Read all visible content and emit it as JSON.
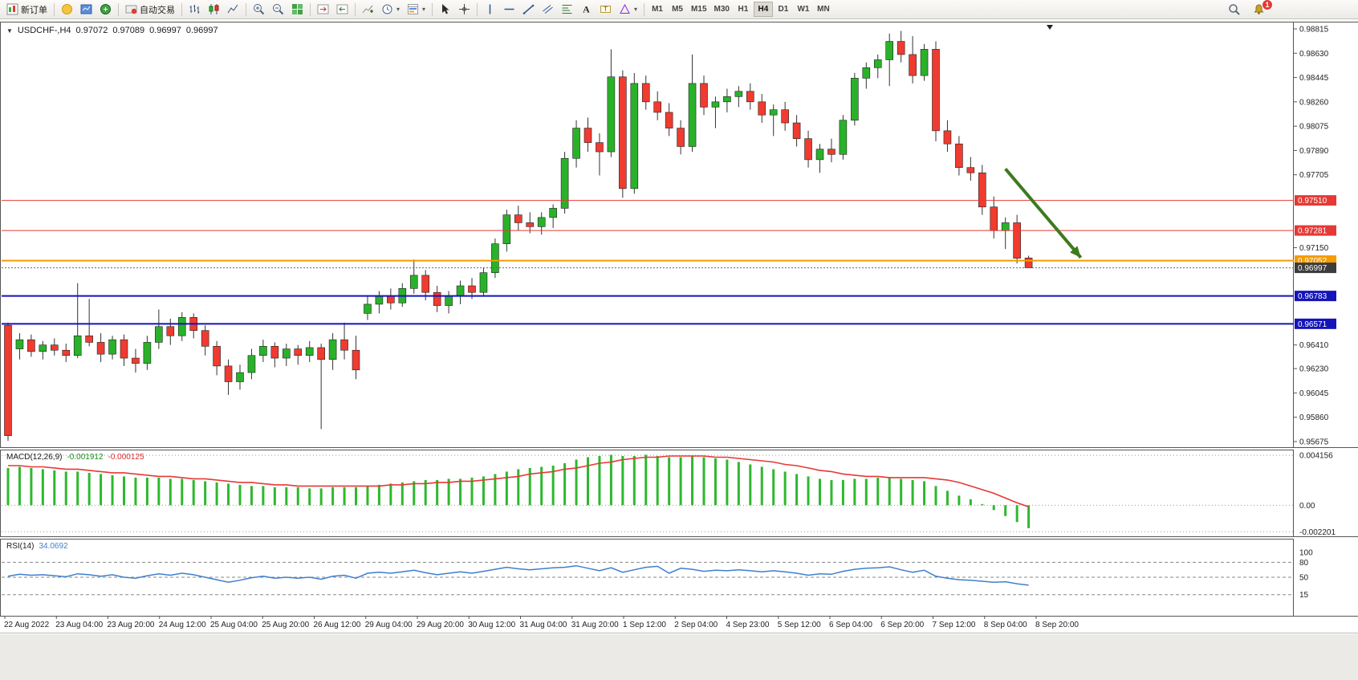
{
  "toolbar": {
    "groups": [
      [
        {
          "name": "new-order",
          "label": "新订单"
        }
      ],
      [
        {
          "name": "mql5"
        },
        {
          "name": "terminal"
        },
        {
          "name": "market-watch"
        }
      ],
      [
        {
          "name": "autotrading",
          "label": "自动交易"
        }
      ],
      [
        {
          "name": "bar-chart"
        },
        {
          "name": "candlestick-chart"
        },
        {
          "name": "line-chart"
        }
      ],
      [
        {
          "name": "zoom-in"
        },
        {
          "name": "zoom-out"
        },
        {
          "name": "tile-windows"
        }
      ],
      [
        {
          "name": "chart-shift"
        },
        {
          "name": "auto-scroll"
        }
      ],
      [
        {
          "name": "indicators-add"
        },
        {
          "name": "periods",
          "dropdown": true
        },
        {
          "name": "templates",
          "dropdown": true
        }
      ],
      [
        {
          "name": "cursor"
        },
        {
          "name": "crosshair"
        }
      ],
      [
        {
          "name": "vertical-line"
        },
        {
          "name": "horizontal-line"
        },
        {
          "name": "trendline"
        },
        {
          "name": "equidistant-channel"
        },
        {
          "name": "fibonacci"
        },
        {
          "name": "text"
        },
        {
          "name": "text-label"
        },
        {
          "name": "shapes",
          "dropdown": true
        }
      ]
    ],
    "timeframes": {
      "items": [
        "M1",
        "M5",
        "M15",
        "M30",
        "H1",
        "H4",
        "D1",
        "W1",
        "MN"
      ],
      "active": "H4"
    },
    "notification_count": "1"
  },
  "chart": {
    "title_symbol": "USDCHF-,H4",
    "open": "0.97072",
    "high": "0.97089",
    "low": "0.96997",
    "close": "0.96997",
    "y_axis_ticks": [
      "0.98815",
      "0.98630",
      "0.98445",
      "0.98260",
      "0.98075",
      "0.97890",
      "0.97705",
      "0.97520",
      "0.97335",
      "0.97150",
      "0.96965",
      "0.96780",
      "0.96595",
      "0.96410",
      "0.96230",
      "0.96045",
      "0.95860",
      "0.95675"
    ],
    "hlines": [
      {
        "price": 0.9751,
        "label": "0.97510",
        "color": "#e53935",
        "width": 1,
        "label_bg": "#e53935"
      },
      {
        "price": 0.97281,
        "label": "0.97281",
        "color": "#e53935",
        "width": 1,
        "label_bg": "#e53935"
      },
      {
        "price": 0.97052,
        "label": "0.97052",
        "color": "#f59b00",
        "width": 2,
        "label_bg": "#f59b00"
      },
      {
        "price": 0.96783,
        "label": "0.96783",
        "color": "#1414b8",
        "width": 2,
        "label_bg": "#1414b8"
      },
      {
        "price": 0.96571,
        "label": "0.96571",
        "color": "#1414b8",
        "width": 2,
        "label_bg": "#1414b8"
      }
    ],
    "current_price": {
      "value": 0.96997,
      "label": "0.96997",
      "label_bg": "#3c3c3c"
    },
    "arrow": {
      "from_index": 86,
      "from_price": 0.9775,
      "to_index": 92.5,
      "to_price": 0.97075,
      "color": "#3e7a1e"
    },
    "x_labels": [
      "22 Aug 2022",
      "23 Aug 04:00",
      "23 Aug 20:00",
      "24 Aug 12:00",
      "25 Aug 04:00",
      "25 Aug 20:00",
      "26 Aug 12:00",
      "29 Aug 04:00",
      "29 Aug 20:00",
      "30 Aug 12:00",
      "31 Aug 04:00",
      "31 Aug 20:00",
      "1 Sep 12:00",
      "2 Sep 04:00",
      "4 Sep 23:00",
      "5 Sep 12:00",
      "6 Sep 04:00",
      "6 Sep 20:00",
      "7 Sep 12:00",
      "8 Sep 04:00",
      "8 Sep 20:00"
    ]
  },
  "indicators": {
    "macd": {
      "name": "MACD(12,26,9)",
      "main_value": "-0.001912",
      "signal_value": "-0.000125"
    },
    "rsi": {
      "name": "RSI(14)",
      "value": "34.0692"
    }
  },
  "chart_data": [
    {
      "type": "candlestick",
      "symbol": "USDCHF-",
      "timeframe": "H4",
      "title": "USDCHF-,H4",
      "ohlc_current": {
        "open": 0.97072,
        "high": 0.97089,
        "low": 0.96997,
        "close": 0.96997
      },
      "y_range": [
        0.95675,
        0.98815
      ],
      "colors": {
        "bull": "#29b229",
        "bear": "#f03b30",
        "wick": "#333333"
      },
      "candles": [
        [
          0.9656,
          0.9658,
          0.9568,
          0.9572
        ],
        [
          0.9638,
          0.965,
          0.963,
          0.9645
        ],
        [
          0.9645,
          0.9649,
          0.9632,
          0.9636
        ],
        [
          0.9636,
          0.9644,
          0.963,
          0.9641
        ],
        [
          0.9641,
          0.9646,
          0.9633,
          0.9637
        ],
        [
          0.9637,
          0.9642,
          0.9628,
          0.9633
        ],
        [
          0.9633,
          0.9688,
          0.9631,
          0.9648
        ],
        [
          0.9648,
          0.9676,
          0.964,
          0.9643
        ],
        [
          0.9643,
          0.965,
          0.9628,
          0.9634
        ],
        [
          0.9634,
          0.9648,
          0.963,
          0.9645
        ],
        [
          0.9645,
          0.9649,
          0.9625,
          0.9631
        ],
        [
          0.9631,
          0.9638,
          0.962,
          0.9627
        ],
        [
          0.9627,
          0.9648,
          0.9622,
          0.9643
        ],
        [
          0.9643,
          0.9668,
          0.9638,
          0.9655
        ],
        [
          0.9655,
          0.9661,
          0.9641,
          0.9648
        ],
        [
          0.9648,
          0.9666,
          0.9644,
          0.9662
        ],
        [
          0.9662,
          0.9665,
          0.9646,
          0.9652
        ],
        [
          0.9652,
          0.9656,
          0.9633,
          0.964
        ],
        [
          0.964,
          0.9644,
          0.9618,
          0.9625
        ],
        [
          0.9625,
          0.963,
          0.9603,
          0.9613
        ],
        [
          0.9613,
          0.9626,
          0.9607,
          0.962
        ],
        [
          0.962,
          0.9638,
          0.9615,
          0.9633
        ],
        [
          0.9633,
          0.9645,
          0.9628,
          0.964
        ],
        [
          0.964,
          0.9643,
          0.9624,
          0.9631
        ],
        [
          0.9631,
          0.9642,
          0.9625,
          0.9638
        ],
        [
          0.9638,
          0.9641,
          0.9626,
          0.9633
        ],
        [
          0.9633,
          0.9644,
          0.9628,
          0.9639
        ],
        [
          0.9639,
          0.9642,
          0.9577,
          0.963
        ],
        [
          0.963,
          0.965,
          0.9622,
          0.9645
        ],
        [
          0.9645,
          0.9658,
          0.963,
          0.9637
        ],
        [
          0.9637,
          0.9648,
          0.9615,
          0.9622
        ],
        [
          0.9665,
          0.9678,
          0.966,
          0.9672
        ],
        [
          0.9672,
          0.9682,
          0.9665,
          0.9678
        ],
        [
          0.9678,
          0.9684,
          0.9668,
          0.9673
        ],
        [
          0.9673,
          0.9688,
          0.967,
          0.9684
        ],
        [
          0.9684,
          0.9706,
          0.968,
          0.9694
        ],
        [
          0.9694,
          0.9698,
          0.9675,
          0.9681
        ],
        [
          0.9681,
          0.9686,
          0.9666,
          0.9671
        ],
        [
          0.9671,
          0.9682,
          0.9665,
          0.9678
        ],
        [
          0.9678,
          0.969,
          0.9672,
          0.9686
        ],
        [
          0.9686,
          0.9692,
          0.9676,
          0.9681
        ],
        [
          0.9681,
          0.97,
          0.9678,
          0.9696
        ],
        [
          0.9696,
          0.9722,
          0.9692,
          0.9718
        ],
        [
          0.9718,
          0.9744,
          0.9712,
          0.974
        ],
        [
          0.974,
          0.9747,
          0.9728,
          0.9734
        ],
        [
          0.9734,
          0.9742,
          0.9726,
          0.9731
        ],
        [
          0.9731,
          0.9742,
          0.9725,
          0.9738
        ],
        [
          0.9738,
          0.9748,
          0.973,
          0.9745
        ],
        [
          0.9745,
          0.9788,
          0.9741,
          0.9783
        ],
        [
          0.9783,
          0.9812,
          0.9776,
          0.9806
        ],
        [
          0.9806,
          0.9814,
          0.9788,
          0.9795
        ],
        [
          0.9795,
          0.9802,
          0.977,
          0.9788
        ],
        [
          0.9788,
          0.9866,
          0.9784,
          0.9845
        ],
        [
          0.9845,
          0.985,
          0.9753,
          0.976
        ],
        [
          0.976,
          0.9848,
          0.9756,
          0.984
        ],
        [
          0.984,
          0.9846,
          0.982,
          0.9826
        ],
        [
          0.9826,
          0.9834,
          0.9812,
          0.9818
        ],
        [
          0.9818,
          0.9825,
          0.98,
          0.9806
        ],
        [
          0.9806,
          0.9812,
          0.9786,
          0.9792
        ],
        [
          0.9792,
          0.9862,
          0.9788,
          0.984
        ],
        [
          0.984,
          0.9846,
          0.9816,
          0.9822
        ],
        [
          0.9822,
          0.983,
          0.9806,
          0.9826
        ],
        [
          0.9826,
          0.9836,
          0.9818,
          0.983
        ],
        [
          0.983,
          0.9838,
          0.9822,
          0.9834
        ],
        [
          0.9834,
          0.984,
          0.982,
          0.9826
        ],
        [
          0.9826,
          0.9832,
          0.981,
          0.9816
        ],
        [
          0.9816,
          0.9824,
          0.98,
          0.982
        ],
        [
          0.982,
          0.9826,
          0.9804,
          0.981
        ],
        [
          0.981,
          0.9816,
          0.9792,
          0.9798
        ],
        [
          0.9798,
          0.9804,
          0.9776,
          0.9782
        ],
        [
          0.9782,
          0.9794,
          0.9772,
          0.979
        ],
        [
          0.979,
          0.9798,
          0.978,
          0.9786
        ],
        [
          0.9786,
          0.9816,
          0.9782,
          0.9812
        ],
        [
          0.9812,
          0.9848,
          0.9808,
          0.9844
        ],
        [
          0.9844,
          0.9856,
          0.9836,
          0.9852
        ],
        [
          0.9852,
          0.9862,
          0.9844,
          0.9858
        ],
        [
          0.9858,
          0.9878,
          0.9838,
          0.9872
        ],
        [
          0.9872,
          0.988,
          0.9856,
          0.9862
        ],
        [
          0.9862,
          0.9876,
          0.984,
          0.9846
        ],
        [
          0.9846,
          0.987,
          0.9842,
          0.9866
        ],
        [
          0.9866,
          0.9872,
          0.9796,
          0.9804
        ],
        [
          0.9804,
          0.9812,
          0.9788,
          0.9794
        ],
        [
          0.9794,
          0.98,
          0.977,
          0.9776
        ],
        [
          0.9776,
          0.9784,
          0.9766,
          0.9772
        ],
        [
          0.9772,
          0.9778,
          0.974,
          0.9746
        ],
        [
          0.9746,
          0.9754,
          0.9722,
          0.9728
        ],
        [
          0.9728,
          0.9738,
          0.9714,
          0.9734
        ],
        [
          0.9734,
          0.974,
          0.9703,
          0.9707
        ],
        [
          0.97072,
          0.97089,
          0.96997,
          0.96997
        ]
      ]
    },
    {
      "type": "bar",
      "name": "MACD(12,26,9)",
      "current_main": -0.001912,
      "current_signal": -0.000125,
      "y_ticks": [
        "0.004156",
        "0.00",
        "-0.002201"
      ],
      "colors": {
        "histogram": "#2eb82e",
        "signal": "#e53935"
      },
      "values": [
        0.0031,
        0.0032,
        0.0031,
        0.003,
        0.0029,
        0.0028,
        0.0028,
        0.0027,
        0.0026,
        0.0025,
        0.0024,
        0.0023,
        0.0023,
        0.0023,
        0.0022,
        0.0022,
        0.0021,
        0.002,
        0.0019,
        0.0018,
        0.0017,
        0.0016,
        0.0016,
        0.0015,
        0.0015,
        0.0015,
        0.0014,
        0.0014,
        0.0015,
        0.0015,
        0.0015,
        0.0016,
        0.0017,
        0.0018,
        0.0019,
        0.002,
        0.0021,
        0.0021,
        0.0022,
        0.0022,
        0.0023,
        0.0024,
        0.0026,
        0.0028,
        0.003,
        0.0031,
        0.0032,
        0.0033,
        0.0035,
        0.0038,
        0.004,
        0.0041,
        0.0042,
        0.0041,
        0.0041,
        0.0042,
        0.0041,
        0.004,
        0.004,
        0.0041,
        0.004,
        0.0039,
        0.0038,
        0.0036,
        0.0034,
        0.0032,
        0.003,
        0.0028,
        0.0026,
        0.0024,
        0.0022,
        0.0021,
        0.0021,
        0.0022,
        0.0022,
        0.0023,
        0.0023,
        0.0022,
        0.0021,
        0.002,
        0.0016,
        0.0012,
        0.0008,
        0.0005,
        0.0001,
        -0.0004,
        -0.0009,
        -0.0014,
        -0.001912
      ],
      "signal": [
        0.0033,
        0.0033,
        0.0032,
        0.0032,
        0.0031,
        0.003,
        0.003,
        0.0029,
        0.0028,
        0.0027,
        0.0027,
        0.0026,
        0.0025,
        0.0024,
        0.0024,
        0.0023,
        0.0022,
        0.0022,
        0.0021,
        0.002,
        0.0019,
        0.0019,
        0.0018,
        0.0017,
        0.0017,
        0.0016,
        0.0016,
        0.0016,
        0.0016,
        0.0016,
        0.0016,
        0.0016,
        0.0016,
        0.0017,
        0.0017,
        0.0018,
        0.0018,
        0.0019,
        0.0019,
        0.002,
        0.002,
        0.0021,
        0.0022,
        0.0023,
        0.0024,
        0.0026,
        0.0027,
        0.0028,
        0.003,
        0.0031,
        0.0033,
        0.0035,
        0.0036,
        0.0038,
        0.0039,
        0.004,
        0.004,
        0.0041,
        0.0041,
        0.0041,
        0.0041,
        0.004,
        0.004,
        0.0039,
        0.0038,
        0.0037,
        0.0036,
        0.0034,
        0.0033,
        0.0031,
        0.0029,
        0.0028,
        0.0026,
        0.0025,
        0.0024,
        0.0024,
        0.0023,
        0.0023,
        0.0023,
        0.0023,
        0.0022,
        0.0021,
        0.0019,
        0.0016,
        0.0013,
        0.001,
        0.0006,
        0.0002,
        -0.000125
      ]
    },
    {
      "type": "line",
      "name": "RSI(14)",
      "current": 34.0692,
      "levels": [
        80,
        50,
        15
      ],
      "y_ticks": [
        "100",
        "80",
        "50",
        "15"
      ],
      "color": "#3f7fce",
      "values": [
        52,
        56,
        54,
        55,
        53,
        51,
        57,
        55,
        52,
        55,
        50,
        48,
        53,
        57,
        54,
        58,
        55,
        50,
        45,
        40,
        44,
        49,
        52,
        48,
        50,
        48,
        50,
        46,
        52,
        54,
        48,
        58,
        60,
        58,
        61,
        64,
        59,
        55,
        58,
        61,
        58,
        62,
        66,
        70,
        67,
        65,
        67,
        69,
        70,
        73,
        68,
        63,
        69,
        60,
        65,
        70,
        72,
        58,
        68,
        66,
        62,
        64,
        63,
        65,
        63,
        61,
        63,
        61,
        58,
        54,
        57,
        56,
        62,
        66,
        68,
        69,
        71,
        65,
        60,
        64,
        52,
        48,
        45,
        44,
        42,
        40,
        41,
        37,
        34.0692
      ]
    }
  ]
}
